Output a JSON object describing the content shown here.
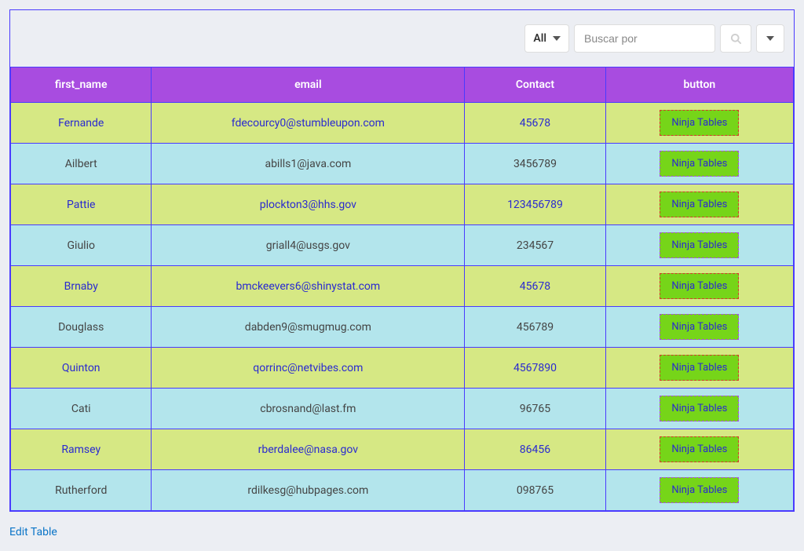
{
  "toolbar": {
    "filter_label": "All",
    "search_placeholder": "Buscar por"
  },
  "columns": [
    {
      "key": "first_name",
      "label": "first_name"
    },
    {
      "key": "email",
      "label": "email"
    },
    {
      "key": "contact",
      "label": "Contact"
    },
    {
      "key": "button",
      "label": "button"
    }
  ],
  "button_label": "Ninja Tables",
  "rows": [
    {
      "first_name": "Fernande",
      "email": "fdecourcy0@stumbleupon.com",
      "contact": "45678"
    },
    {
      "first_name": "Ailbert",
      "email": "abills1@java.com",
      "contact": "3456789"
    },
    {
      "first_name": "Pattie",
      "email": "plockton3@hhs.gov",
      "contact": "123456789"
    },
    {
      "first_name": "Giulio",
      "email": "griall4@usgs.gov",
      "contact": "234567"
    },
    {
      "first_name": "Brnaby",
      "email": "bmckeevers6@shinystat.com",
      "contact": "45678"
    },
    {
      "first_name": "Douglass",
      "email": "dabden9@smugmug.com",
      "contact": "456789"
    },
    {
      "first_name": "Quinton",
      "email": "qorrinc@netvibes.com",
      "contact": "4567890"
    },
    {
      "first_name": "Cati",
      "email": "cbrosnand@last.fm",
      "contact": "96765"
    },
    {
      "first_name": "Ramsey",
      "email": "rberdalee@nasa.gov",
      "contact": "86456"
    },
    {
      "first_name": "Rutherford",
      "email": "rdilkesg@hubpages.com",
      "contact": "098765"
    }
  ],
  "footer": {
    "edit_label": "Edit Table"
  },
  "colors": {
    "border": "#4a3aff",
    "header_bg": "#a84ce0",
    "row_odd_bg": "#d6e884",
    "row_even_bg": "#b3e5ec",
    "link_text": "#2a2ad0",
    "plain_text": "#444444",
    "btn_bg": "#76d519",
    "btn_border_odd": "#d13a2a",
    "btn_border_even": "#a84ce0",
    "page_bg": "#eceef3"
  }
}
